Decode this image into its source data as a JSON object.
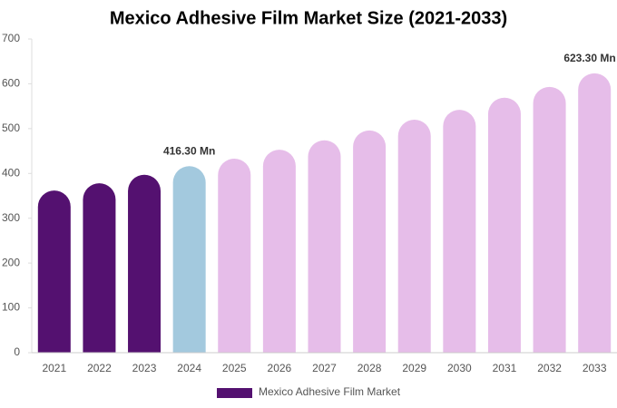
{
  "chart_data": {
    "type": "bar",
    "title": "Mexico Adhesive Film Market Size (2021-2033)",
    "categories": [
      "2021",
      "2022",
      "2023",
      "2024",
      "2025",
      "2026",
      "2027",
      "2028",
      "2029",
      "2030",
      "2031",
      "2032",
      "2033"
    ],
    "series": [
      {
        "name": "Mexico Adhesive Film Market",
        "color": "#541170",
        "values": [
          362,
          378,
          397,
          416.3,
          433,
          453,
          474,
          496,
          520,
          542,
          569,
          593,
          623.3
        ],
        "value_labels": [
          null,
          null,
          null,
          "416.30 Mn",
          null,
          null,
          null,
          null,
          null,
          null,
          null,
          null,
          "623.30 Mn"
        ],
        "colors": [
          "#541170",
          "#541170",
          "#541170",
          "#a3c9de",
          "#e6bde9",
          "#e6bde9",
          "#e6bde9",
          "#e6bde9",
          "#e6bde9",
          "#e6bde9",
          "#e6bde9",
          "#e6bde9",
          "#e6bde9"
        ]
      }
    ],
    "ylim": [
      0,
      700
    ],
    "yticks": [
      0,
      100,
      200,
      300,
      400,
      500,
      600,
      700
    ],
    "legend": "bottom"
  }
}
